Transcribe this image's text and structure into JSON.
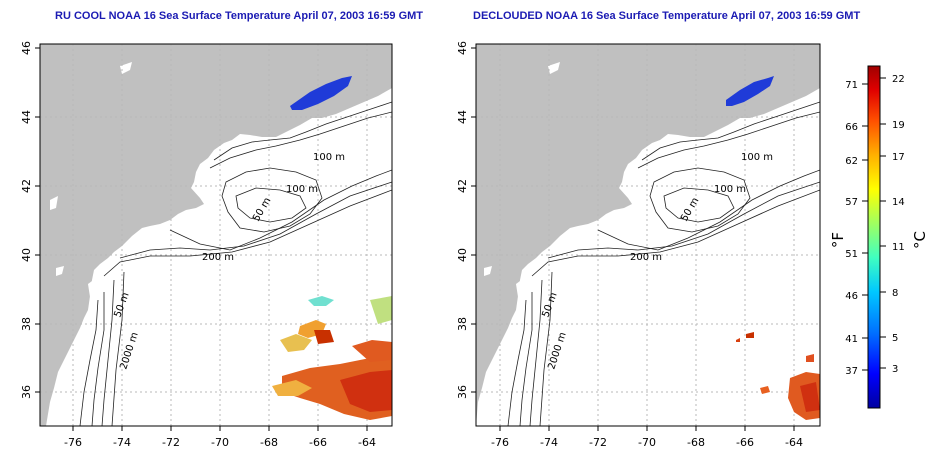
{
  "titles": {
    "left": "RU COOL NOAA 16 Sea Surface Temperature April 07, 2003 16:59 GMT",
    "right": "DECLOUDED NOAA 16 Sea Surface Temperature April 07, 2003 16:59 GMT"
  },
  "map_axes": {
    "lon_ticks": [
      "-76",
      "-74",
      "-72",
      "-70",
      "-68",
      "-66",
      "-64"
    ],
    "lat_ticks": [
      "36",
      "38",
      "40",
      "42",
      "44",
      "46"
    ],
    "lon_range": [
      -77,
      -63
    ],
    "lat_range": [
      35,
      46
    ]
  },
  "contour_labels": {
    "left": [
      "100 m",
      "100 m",
      "50 m",
      "200 m",
      "50 m",
      "2000 m"
    ],
    "right": [
      "100 m",
      "100 m",
      "50 m",
      "200 m",
      "50 m",
      "2000 m"
    ]
  },
  "colorbar": {
    "fahrenheit_label": "°F",
    "celsius_label": "°C",
    "fahrenheit_ticks": [
      "71",
      "66",
      "62",
      "57",
      "51",
      "46",
      "41",
      "37"
    ],
    "celsius_ticks": [
      "22",
      "19",
      "17",
      "14",
      "11",
      "8",
      "5",
      "3"
    ],
    "colors": [
      "#0000a0",
      "#0000ff",
      "#0070ff",
      "#00c8ff",
      "#40ffc0",
      "#a0ff60",
      "#ffff00",
      "#ffb000",
      "#ff5000",
      "#e00000",
      "#a00000"
    ]
  },
  "colors": {
    "land": "#c0c0c0",
    "ocean": "#ffffff",
    "grid": "#b8b8b8",
    "title": "#1b1bb3",
    "cold_water": "#1f3bd8"
  }
}
